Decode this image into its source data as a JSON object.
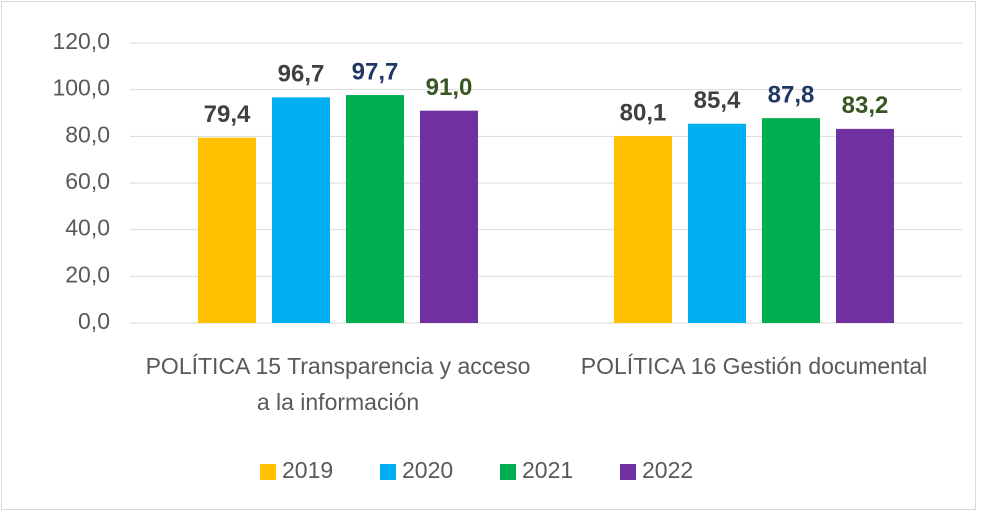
{
  "chart_data": {
    "type": "bar",
    "categories": [
      "POLÍTICA 15 Transparencia y acceso a la información",
      "POLÍTICA 16 Gestión documental"
    ],
    "series": [
      {
        "name": "2019",
        "color": "#ffc000",
        "label_color": "#404040",
        "values": [
          79.4,
          80.1
        ],
        "value_labels": [
          "79,4",
          "80,1"
        ]
      },
      {
        "name": "2020",
        "color": "#00b0f0",
        "label_color": "#404040",
        "values": [
          96.7,
          85.4
        ],
        "value_labels": [
          "96,7",
          "85,4"
        ]
      },
      {
        "name": "2021",
        "color": "#00b050",
        "label_color": "#1f3864",
        "values": [
          97.7,
          87.8
        ],
        "value_labels": [
          "97,7",
          "87,8"
        ]
      },
      {
        "name": "2022",
        "color": "#7030a0",
        "label_color": "#375623",
        "values": [
          91.0,
          83.2
        ],
        "value_labels": [
          "91,0",
          "83,2"
        ]
      }
    ],
    "ylim": [
      0,
      120
    ],
    "yticks": [
      {
        "value": 0,
        "label": "0,0"
      },
      {
        "value": 20,
        "label": "20,0"
      },
      {
        "value": 40,
        "label": "40,0"
      },
      {
        "value": 60,
        "label": "60,0"
      },
      {
        "value": 80,
        "label": "80,0"
      },
      {
        "value": 100,
        "label": "100,0"
      },
      {
        "value": 120,
        "label": "120,0"
      }
    ],
    "grid": true,
    "legend": "bottom"
  }
}
